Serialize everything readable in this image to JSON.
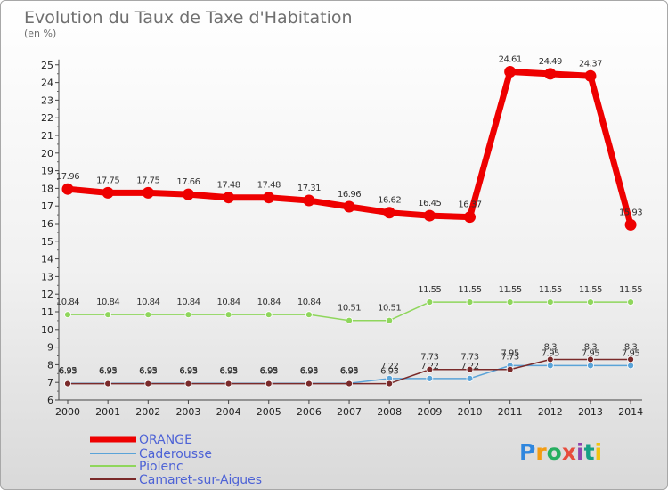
{
  "chart_data": {
    "type": "line",
    "title": "Evolution du Taux de Taxe d'Habitation",
    "subtitle": "(en %)",
    "categories": [
      "2000",
      "2001",
      "2002",
      "2003",
      "2004",
      "2005",
      "2006",
      "2007",
      "2008",
      "2009",
      "2010",
      "2011",
      "2012",
      "2013",
      "2014"
    ],
    "ylim": [
      6,
      25
    ],
    "yticks": [
      6,
      7,
      8,
      9,
      10,
      11,
      12,
      13,
      14,
      15,
      16,
      17,
      18,
      19,
      20,
      21,
      22,
      23,
      24,
      25
    ],
    "grid": false,
    "legend_position": "bottom-left",
    "series": [
      {
        "name": "ORANGE",
        "color": "#ee0000",
        "values": [
          17.96,
          17.75,
          17.75,
          17.66,
          17.48,
          17.48,
          17.31,
          16.96,
          16.62,
          16.45,
          16.37,
          24.61,
          24.49,
          24.37,
          15.93
        ],
        "labels": [
          "17.96",
          "17.75",
          "17.75",
          "17.66",
          "17.48",
          "17.48",
          "17.31",
          "16.96",
          "16.62",
          "16.45",
          "16.37",
          "24.61",
          "24.49",
          "24.37",
          "15.93"
        ]
      },
      {
        "name": "Caderousse",
        "color": "#5aa3d8",
        "values": [
          6.95,
          6.95,
          6.95,
          6.95,
          6.95,
          6.95,
          6.95,
          6.95,
          7.22,
          7.22,
          7.22,
          7.95,
          7.95,
          7.95,
          7.95
        ],
        "labels": [
          "6.95",
          "6.95",
          "6.95",
          "6.95",
          "6.95",
          "6.95",
          "6.95",
          "6.95",
          "7.22",
          "7.22",
          "7.22",
          "7.95",
          "7.95",
          "7.95",
          "7.95"
        ]
      },
      {
        "name": "Piolenc",
        "color": "#8fd65c",
        "values": [
          10.84,
          10.84,
          10.84,
          10.84,
          10.84,
          10.84,
          10.84,
          10.51,
          10.51,
          11.55,
          11.55,
          11.55,
          11.55,
          11.55,
          11.55
        ],
        "labels": [
          "10.84",
          "10.84",
          "10.84",
          "10.84",
          "10.84",
          "10.84",
          "10.84",
          "10.51",
          "10.51",
          "11.55",
          "11.55",
          "11.55",
          "11.55",
          "11.55",
          "11.55"
        ]
      },
      {
        "name": "Camaret-sur-Aigues",
        "color": "#7a2a2a",
        "values": [
          6.93,
          6.93,
          6.93,
          6.93,
          6.93,
          6.93,
          6.93,
          6.93,
          6.93,
          7.73,
          7.73,
          7.73,
          8.3,
          8.3,
          8.3
        ],
        "labels": [
          "6.93",
          "6.93",
          "6.93",
          "6.93",
          "6.93",
          "6.93",
          "6.93",
          "6.93",
          "6.93",
          "7.73",
          "7.73",
          "7.73",
          "8.3",
          "8.3",
          "8.3"
        ]
      }
    ]
  },
  "logo": {
    "text": "Proxiti"
  }
}
